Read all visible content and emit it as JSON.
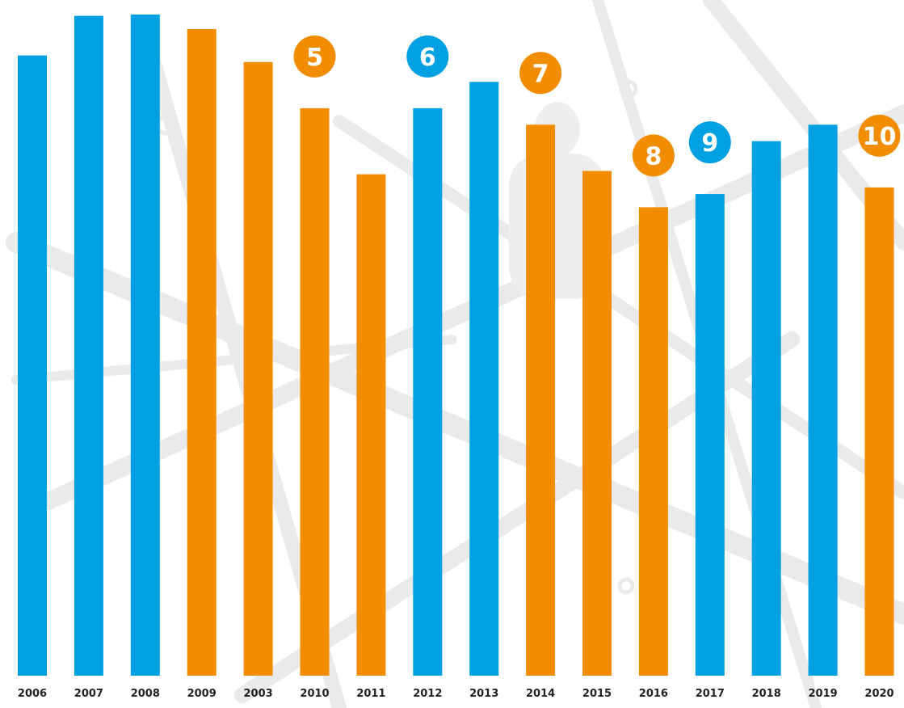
{
  "colors": {
    "blue": "#00a0e3",
    "orange": "#f28c00",
    "tick_text": "#222222"
  },
  "chart_data": {
    "type": "bar",
    "title": "",
    "xlabel": "",
    "ylabel": "",
    "ylim": [
      0,
      100
    ],
    "grid": false,
    "categories": [
      "2006",
      "2007",
      "2008",
      "2009",
      "2003",
      "2010",
      "2011",
      "2012",
      "2013",
      "2014",
      "2015",
      "2016",
      "2017",
      "2018",
      "2019",
      "2020"
    ],
    "values": [
      94,
      100,
      100.2,
      98,
      93,
      86,
      76,
      86,
      90,
      83.5,
      76.5,
      71,
      73,
      81,
      83.5,
      74
    ],
    "bar_colors": [
      "blue",
      "blue",
      "blue",
      "orange",
      "orange",
      "orange",
      "orange",
      "blue",
      "blue",
      "orange",
      "orange",
      "orange",
      "blue",
      "blue",
      "blue",
      "orange"
    ],
    "annotations": [
      {
        "category": "2010",
        "label": "5",
        "color": "orange"
      },
      {
        "category": "2012",
        "label": "6",
        "color": "blue"
      },
      {
        "category": "2014",
        "label": "7",
        "color": "orange"
      },
      {
        "category": "2016",
        "label": "8",
        "color": "orange"
      },
      {
        "category": "2017",
        "label": "9",
        "color": "blue"
      },
      {
        "category": "2020",
        "label": "10",
        "color": "orange"
      }
    ]
  }
}
